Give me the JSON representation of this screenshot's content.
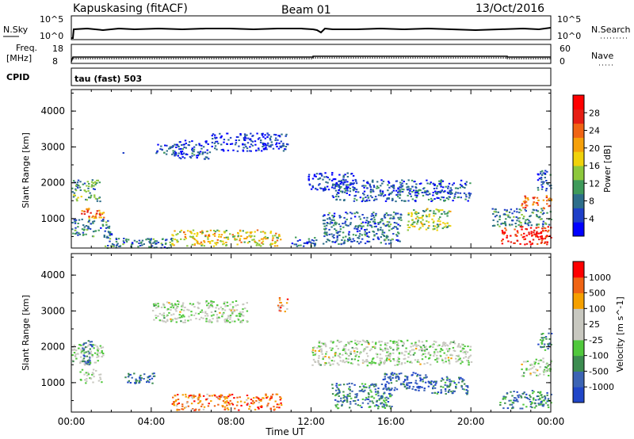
{
  "header": {
    "station": "Kapuskasing (fitACF)",
    "beam": "Beam 01",
    "date": "13/Oct/2016"
  },
  "status_panels": {
    "nsky_label": "N.Sky",
    "nsky_ticks": [
      "10^5",
      "10^0"
    ],
    "nsearch_label": "N.Search",
    "nsearch_ticks": [
      "10^5",
      "10^0"
    ],
    "freq_label_1": "Freq.",
    "freq_label_2": "[MHz]",
    "freq_ticks": [
      "18",
      "8"
    ],
    "nave_label": "Nave",
    "nave_ticks": [
      "60",
      "0"
    ],
    "cpid_label": "CPID",
    "cpid_text": "tau (fast) 503"
  },
  "chart_data": [
    {
      "type": "heatmap",
      "panel": "power",
      "ylabel": "Slant Range [km]",
      "xlabel": "",
      "y_ticks": [
        1000,
        2000,
        3000,
        4000
      ],
      "ylim": [
        180,
        4600
      ],
      "xlim_hours": [
        0,
        24
      ],
      "colorbar_label": "Power [dB]",
      "colorbar_ticks": [
        "28",
        "24",
        "20",
        "16",
        "12",
        "8",
        "4"
      ],
      "colorbar_colors": [
        "#0000ff",
        "#1e3fc8",
        "#2d6e8a",
        "#3f9a5a",
        "#8dc83c",
        "#f0d20a",
        "#f5a00a",
        "#f06414",
        "#e61e14",
        "#ff0000"
      ],
      "regions": [
        {
          "x0": 5.1,
          "x1": 6.9,
          "y0": 2680,
          "y1": 3200,
          "v": 0.15
        },
        {
          "x0": 4.0,
          "x1": 5.3,
          "y0": 2800,
          "y1": 3100,
          "v": 0.2
        },
        {
          "x0": 2.3,
          "x1": 2.6,
          "y0": 2800,
          "y1": 2950,
          "v": 0.15
        },
        {
          "x0": 7.0,
          "x1": 10.8,
          "y0": 2900,
          "y1": 3400,
          "v": 0.12
        },
        {
          "x0": 0.0,
          "x1": 1.4,
          "y0": 1500,
          "y1": 2100,
          "v": 0.35
        },
        {
          "x0": 0.4,
          "x1": 1.6,
          "y0": 1000,
          "y1": 1300,
          "v": 0.7
        },
        {
          "x0": 0.0,
          "x1": 2.0,
          "y0": 500,
          "y1": 1000,
          "v": 0.25
        },
        {
          "x0": 1.5,
          "x1": 5.0,
          "y0": 200,
          "y1": 500,
          "v": 0.25
        },
        {
          "x0": 5.0,
          "x1": 10.5,
          "y0": 250,
          "y1": 700,
          "v": 0.55
        },
        {
          "x0": 11.0,
          "x1": 12.3,
          "y0": 250,
          "y1": 500,
          "v": 0.2
        },
        {
          "x0": 11.8,
          "x1": 14.2,
          "y0": 1800,
          "y1": 2300,
          "v": 0.12
        },
        {
          "x0": 13.0,
          "x1": 20.0,
          "y0": 1500,
          "y1": 2100,
          "v": 0.2
        },
        {
          "x0": 16.8,
          "x1": 19.0,
          "y0": 700,
          "y1": 1300,
          "v": 0.45
        },
        {
          "x0": 12.5,
          "x1": 16.5,
          "y0": 300,
          "y1": 1200,
          "v": 0.25
        },
        {
          "x0": 21.5,
          "x1": 24.0,
          "y0": 300,
          "y1": 800,
          "v": 0.9
        },
        {
          "x0": 22.5,
          "x1": 24.0,
          "y0": 1300,
          "y1": 1700,
          "v": 0.75
        },
        {
          "x0": 21.0,
          "x1": 24.0,
          "y0": 800,
          "y1": 1300,
          "v": 0.3
        },
        {
          "x0": 23.3,
          "x1": 24.0,
          "y0": 1800,
          "y1": 2400,
          "v": 0.15
        }
      ]
    },
    {
      "type": "heatmap",
      "panel": "velocity",
      "ylabel": "Slant Range [km]",
      "xlabel": "Time UT",
      "x_ticks": [
        "00:00",
        "04:00",
        "08:00",
        "12:00",
        "16:00",
        "20:00",
        "00:00"
      ],
      "y_ticks": [
        1000,
        2000,
        3000,
        4000
      ],
      "ylim": [
        180,
        4600
      ],
      "xlim_hours": [
        0,
        24
      ],
      "colorbar_label": "Velocity [m s^-1]",
      "colorbar_ticks": [
        "1000",
        "500",
        "100",
        "25",
        "-25",
        "-100",
        "-500",
        "-1000"
      ],
      "colorbar_colors": [
        "#2046c8",
        "#3c64b4",
        "#3c8c50",
        "#50c83c",
        "#c8c8c0",
        "#c8c8c0",
        "#f5a000",
        "#f06414",
        "#ff0000"
      ],
      "regions": [
        {
          "x0": 4.0,
          "x1": 8.8,
          "y0": 2700,
          "y1": 3300,
          "v": 0.5
        },
        {
          "x0": 10.3,
          "x1": 10.8,
          "y0": 3000,
          "y1": 3400,
          "v": 0.75
        },
        {
          "x0": 0.0,
          "x1": 1.6,
          "y0": 1500,
          "y1": 2100,
          "v": 0.5
        },
        {
          "x0": 0.5,
          "x1": 1.1,
          "y0": 1500,
          "y1": 2200,
          "v": 0.2
        },
        {
          "x0": 0.4,
          "x1": 1.5,
          "y0": 1000,
          "y1": 1400,
          "v": 0.5
        },
        {
          "x0": 2.6,
          "x1": 4.2,
          "y0": 1000,
          "y1": 1300,
          "v": 0.15
        },
        {
          "x0": 5.0,
          "x1": 10.5,
          "y0": 250,
          "y1": 700,
          "v": 0.8
        },
        {
          "x0": 12.0,
          "x1": 20.0,
          "y0": 1500,
          "y1": 2200,
          "v": 0.5
        },
        {
          "x0": 15.5,
          "x1": 18.0,
          "y0": 800,
          "y1": 1300,
          "v": 0.1
        },
        {
          "x0": 18.0,
          "x1": 19.8,
          "y0": 700,
          "y1": 1200,
          "v": 0.2
        },
        {
          "x0": 13.0,
          "x1": 16.0,
          "y0": 300,
          "y1": 1000,
          "v": 0.25
        },
        {
          "x0": 21.4,
          "x1": 24.0,
          "y0": 300,
          "y1": 800,
          "v": 0.25
        },
        {
          "x0": 22.5,
          "x1": 24.0,
          "y0": 1200,
          "y1": 1700,
          "v": 0.5
        },
        {
          "x0": 23.3,
          "x1": 24.0,
          "y0": 1900,
          "y1": 2400,
          "v": 0.25
        }
      ]
    }
  ]
}
